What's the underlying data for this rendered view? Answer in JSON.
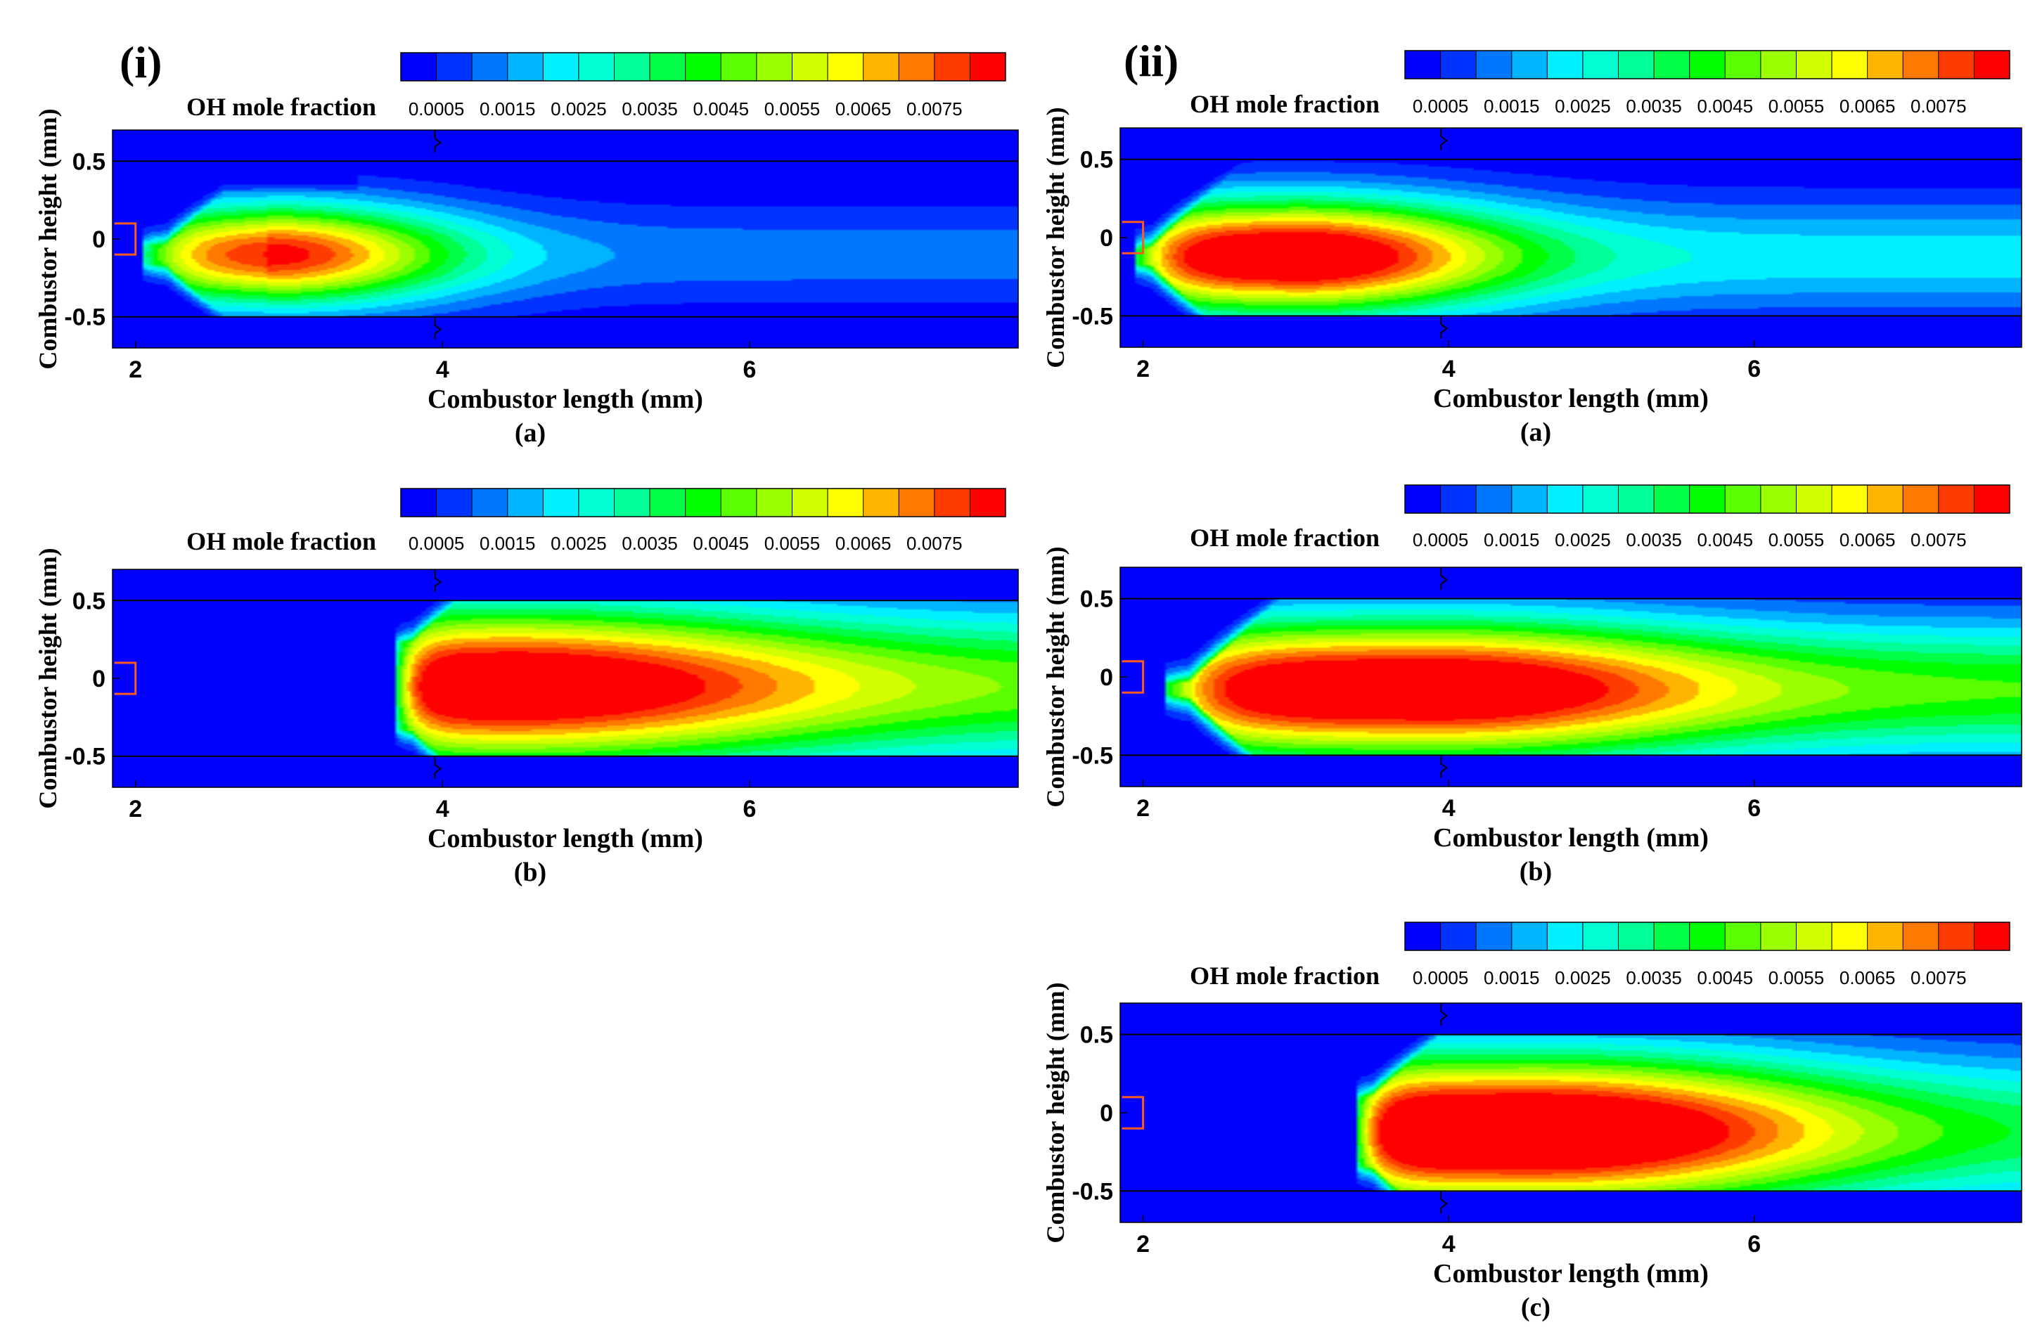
{
  "figure": {
    "column_labels": [
      "(i)",
      "(ii)"
    ]
  },
  "chart_data": [
    {
      "type": "heatmap",
      "column": "(i)",
      "panel_label": "(a)",
      "field": "OH mole fraction",
      "title": "OH mole fraction",
      "xlabel": "Combustor length (mm)",
      "ylabel": "Combustor height (mm)",
      "xlim": [
        1.85,
        7.75
      ],
      "ylim": [
        -0.7,
        0.7
      ],
      "xticks": [
        2,
        4,
        6
      ],
      "yticks": [
        0.5,
        0,
        -0.5
      ],
      "wall_y": [
        0.5,
        -0.5
      ],
      "inlet": {
        "x": 2,
        "y": [
          -0.1,
          0.1
        ]
      },
      "colorbar": {
        "levels": [
          0,
          0.0005,
          0.001,
          0.0015,
          0.002,
          0.0025,
          0.003,
          0.0035,
          0.004,
          0.0045,
          0.005,
          0.0055,
          0.006,
          0.0065,
          0.007,
          0.0075,
          0.008
        ],
        "tick_labels": [
          "0.0005",
          "0.0015",
          "0.0025",
          "0.0035",
          "0.0045",
          "0.0055",
          "0.0065",
          "0.0075"
        ],
        "colors": [
          "#0000ff",
          "#0033ff",
          "#0077ff",
          "#00b4ff",
          "#00f0ff",
          "#00ffd2",
          "#00ff96",
          "#00ff46",
          "#00ff00",
          "#5aff00",
          "#9bff00",
          "#d2ff00",
          "#ffff00",
          "#ffb400",
          "#ff7800",
          "#ff3c00",
          "#ff0000"
        ]
      },
      "flame": {
        "onset": 2.05,
        "head_halfwidth": 0.06,
        "start_growth": 2.2,
        "near_wall_cap": 0.4,
        "center_y": -0.1,
        "spread_y": 0.4,
        "peak_x": 2.85,
        "peak_value": 0.0084,
        "rise_tau": 0.3,
        "decay": 0.035,
        "far_value": 0.0013,
        "x_scale": 1.9
      }
    },
    {
      "type": "heatmap",
      "column": "(i)",
      "panel_label": "(b)",
      "field": "OH mole fraction",
      "title": "OH mole fraction",
      "xlabel": "Combustor length (mm)",
      "ylabel": "Combustor height (mm)",
      "xlim": [
        1.85,
        7.75
      ],
      "ylim": [
        -0.7,
        0.7
      ],
      "xticks": [
        2,
        4,
        6
      ],
      "yticks": [
        0.5,
        0,
        -0.5
      ],
      "wall_y": [
        0.5,
        -0.5
      ],
      "inlet": {
        "x": 2,
        "y": [
          -0.1,
          0.1
        ]
      },
      "colorbar": {
        "levels": [
          0,
          0.0005,
          0.001,
          0.0015,
          0.002,
          0.0025,
          0.003,
          0.0035,
          0.004,
          0.0045,
          0.005,
          0.0055,
          0.006,
          0.0065,
          0.007,
          0.0075,
          0.008
        ],
        "tick_labels": [
          "0.0005",
          "0.0015",
          "0.0025",
          "0.0035",
          "0.0045",
          "0.0055",
          "0.0065",
          "0.0075"
        ],
        "colors": [
          "#0000ff",
          "#0033ff",
          "#0077ff",
          "#00b4ff",
          "#00f0ff",
          "#00ffd2",
          "#00ff96",
          "#00ff46",
          "#00ff00",
          "#5aff00",
          "#9bff00",
          "#d2ff00",
          "#ffff00",
          "#ffb400",
          "#ff7800",
          "#ff3c00",
          "#ff0000"
        ]
      },
      "flame": {
        "onset": 3.7,
        "head_halfwidth": 0.28,
        "start_growth": 3.8,
        "near_wall_cap": 0.75,
        "center_y": -0.05,
        "spread_y": 0.62,
        "peak_x": 4.4,
        "peak_value": 0.0098,
        "rise_tau": 0.12,
        "decay": 0.02,
        "far_value": 0.0046,
        "x_scale": 3.2
      }
    },
    {
      "type": "heatmap",
      "column": "(ii)",
      "panel_label": "(a)",
      "field": "OH mole fraction",
      "title": "OH mole fraction",
      "xlabel": "Combustor length (mm)",
      "ylabel": "Combustor height (mm)",
      "xlim": [
        1.85,
        7.75
      ],
      "ylim": [
        -0.7,
        0.7
      ],
      "xticks": [
        2,
        4,
        6
      ],
      "yticks": [
        0.5,
        0,
        -0.5
      ],
      "wall_y": [
        0.5,
        -0.5
      ],
      "inlet": {
        "x": 2,
        "y": [
          -0.1,
          0.1
        ]
      },
      "colorbar": {
        "levels": [
          0,
          0.0005,
          0.001,
          0.0015,
          0.002,
          0.0025,
          0.003,
          0.0035,
          0.004,
          0.0045,
          0.005,
          0.0055,
          0.006,
          0.0065,
          0.007,
          0.0075,
          0.008
        ],
        "tick_labels": [
          "0.0005",
          "0.0015",
          "0.0025",
          "0.0035",
          "0.0045",
          "0.0055",
          "0.0065",
          "0.0075"
        ],
        "colors": [
          "#0000ff",
          "#0033ff",
          "#0077ff",
          "#00b4ff",
          "#00f0ff",
          "#00ffd2",
          "#00ff96",
          "#00ff46",
          "#00ff00",
          "#5aff00",
          "#9bff00",
          "#d2ff00",
          "#ffff00",
          "#ffb400",
          "#ff7800",
          "#ff3c00",
          "#ff0000"
        ]
      },
      "flame": {
        "onset": 1.95,
        "head_halfwidth": 0.05,
        "start_growth": 2.05,
        "near_wall_cap": 0.6,
        "center_y": -0.12,
        "spread_y": 0.45,
        "peak_x": 2.95,
        "peak_value": 0.0098,
        "rise_tau": 0.25,
        "decay": 0.03,
        "far_value": 0.0023,
        "x_scale": 2.2
      }
    },
    {
      "type": "heatmap",
      "column": "(ii)",
      "panel_label": "(b)",
      "field": "OH mole fraction",
      "title": "OH mole fraction",
      "xlabel": "Combustor length (mm)",
      "ylabel": "Combustor height (mm)",
      "xlim": [
        1.85,
        7.75
      ],
      "ylim": [
        -0.7,
        0.7
      ],
      "xticks": [
        2,
        4,
        6
      ],
      "yticks": [
        0.5,
        0,
        -0.5
      ],
      "wall_y": [
        0.5,
        -0.5
      ],
      "inlet": {
        "x": 2,
        "y": [
          -0.1,
          0.1
        ]
      },
      "colorbar": {
        "levels": [
          0,
          0.0005,
          0.001,
          0.0015,
          0.002,
          0.0025,
          0.003,
          0.0035,
          0.004,
          0.0045,
          0.005,
          0.0055,
          0.006,
          0.0065,
          0.007,
          0.0075,
          0.008
        ],
        "tick_labels": [
          "0.0005",
          "0.0015",
          "0.0025",
          "0.0035",
          "0.0045",
          "0.0055",
          "0.0065",
          "0.0075"
        ],
        "colors": [
          "#0000ff",
          "#0033ff",
          "#0077ff",
          "#00b4ff",
          "#00f0ff",
          "#00ffd2",
          "#00ff96",
          "#00ff46",
          "#00ff00",
          "#5aff00",
          "#9bff00",
          "#d2ff00",
          "#ffff00",
          "#ffb400",
          "#ff7800",
          "#ff3c00",
          "#ff0000"
        ]
      },
      "flame": {
        "onset": 2.15,
        "head_halfwidth": 0.04,
        "start_growth": 2.3,
        "near_wall_cap": 0.8,
        "center_y": -0.08,
        "spread_y": 0.55,
        "peak_x": 3.9,
        "peak_value": 0.0098,
        "rise_tau": 0.3,
        "decay": 0.015,
        "far_value": 0.0045,
        "x_scale": 2.8
      }
    },
    {
      "type": "heatmap",
      "column": "(ii)",
      "panel_label": "(c)",
      "field": "OH mole fraction",
      "title": "OH mole fraction",
      "xlabel": "Combustor length (mm)",
      "ylabel": "Combustor height (mm)",
      "xlim": [
        1.85,
        7.75
      ],
      "ylim": [
        -0.7,
        0.7
      ],
      "xticks": [
        2,
        4,
        6
      ],
      "yticks": [
        0.5,
        0,
        -0.5
      ],
      "wall_y": [
        0.5,
        -0.5
      ],
      "inlet": {
        "x": 2,
        "y": [
          -0.1,
          0.1
        ]
      },
      "colorbar": {
        "levels": [
          0,
          0.0005,
          0.001,
          0.0015,
          0.002,
          0.0025,
          0.003,
          0.0035,
          0.004,
          0.0045,
          0.005,
          0.0055,
          0.006,
          0.0065,
          0.007,
          0.0075,
          0.008
        ],
        "tick_labels": [
          "0.0005",
          "0.0015",
          "0.0025",
          "0.0035",
          "0.0045",
          "0.0055",
          "0.0065",
          "0.0075"
        ],
        "colors": [
          "#0000ff",
          "#0033ff",
          "#0077ff",
          "#00b4ff",
          "#00f0ff",
          "#00ffd2",
          "#00ff96",
          "#00ff46",
          "#00ff00",
          "#5aff00",
          "#9bff00",
          "#d2ff00",
          "#ffff00",
          "#ffb400",
          "#ff7800",
          "#ff3c00",
          "#ff0000"
        ]
      },
      "flame": {
        "onset": 3.4,
        "head_halfwidth": 0.22,
        "start_growth": 3.5,
        "near_wall_cap": 0.8,
        "center_y": -0.12,
        "spread_y": 0.6,
        "peak_x": 4.6,
        "peak_value": 0.0104,
        "rise_tau": 0.14,
        "decay": 0.013,
        "far_value": 0.0035,
        "x_scale": 3.0
      }
    }
  ]
}
